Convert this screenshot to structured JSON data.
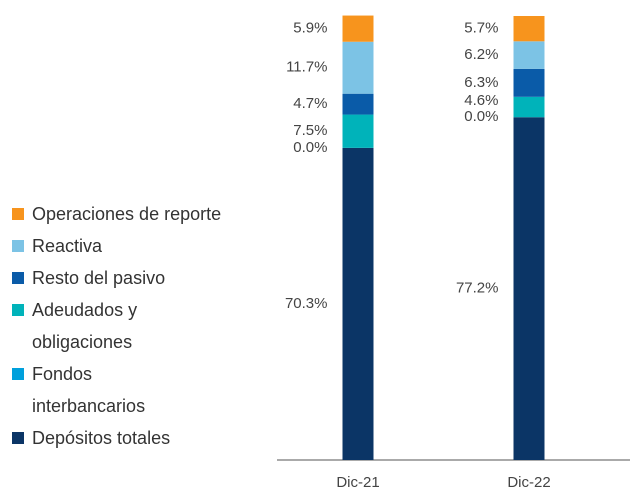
{
  "chart_data": {
    "type": "stacked_bar",
    "categories": [
      "Dic-21",
      "Dic-22"
    ],
    "series": [
      {
        "name": "Depósitos totales",
        "color": "#0b3566",
        "values": [
          70.3,
          77.2
        ],
        "value_labels": [
          "70.3%",
          "77.2%"
        ]
      },
      {
        "name": "Fondos interbancarios",
        "color": "#00a0dc",
        "values": [
          0.0,
          0.0
        ],
        "value_labels": [
          "0.0%",
          "0.0%"
        ]
      },
      {
        "name": "Adeudados y obligaciones",
        "color": "#00b3ba",
        "values": [
          7.5,
          4.6
        ],
        "value_labels": [
          "7.5%",
          "4.6%"
        ]
      },
      {
        "name": "Resto del pasivo",
        "color": "#0a5ba8",
        "values": [
          4.7,
          6.3
        ],
        "value_labels": [
          "4.7%",
          "6.3%"
        ]
      },
      {
        "name": "Reactiva",
        "color": "#7cc3e5",
        "values": [
          11.7,
          6.2
        ],
        "value_labels": [
          "11.7%",
          "6.2%"
        ]
      },
      {
        "name": "Operaciones de reporte",
        "color": "#f7941d",
        "values": [
          5.9,
          5.7
        ],
        "value_labels": [
          "5.9%",
          "5.7%"
        ]
      }
    ]
  }
}
